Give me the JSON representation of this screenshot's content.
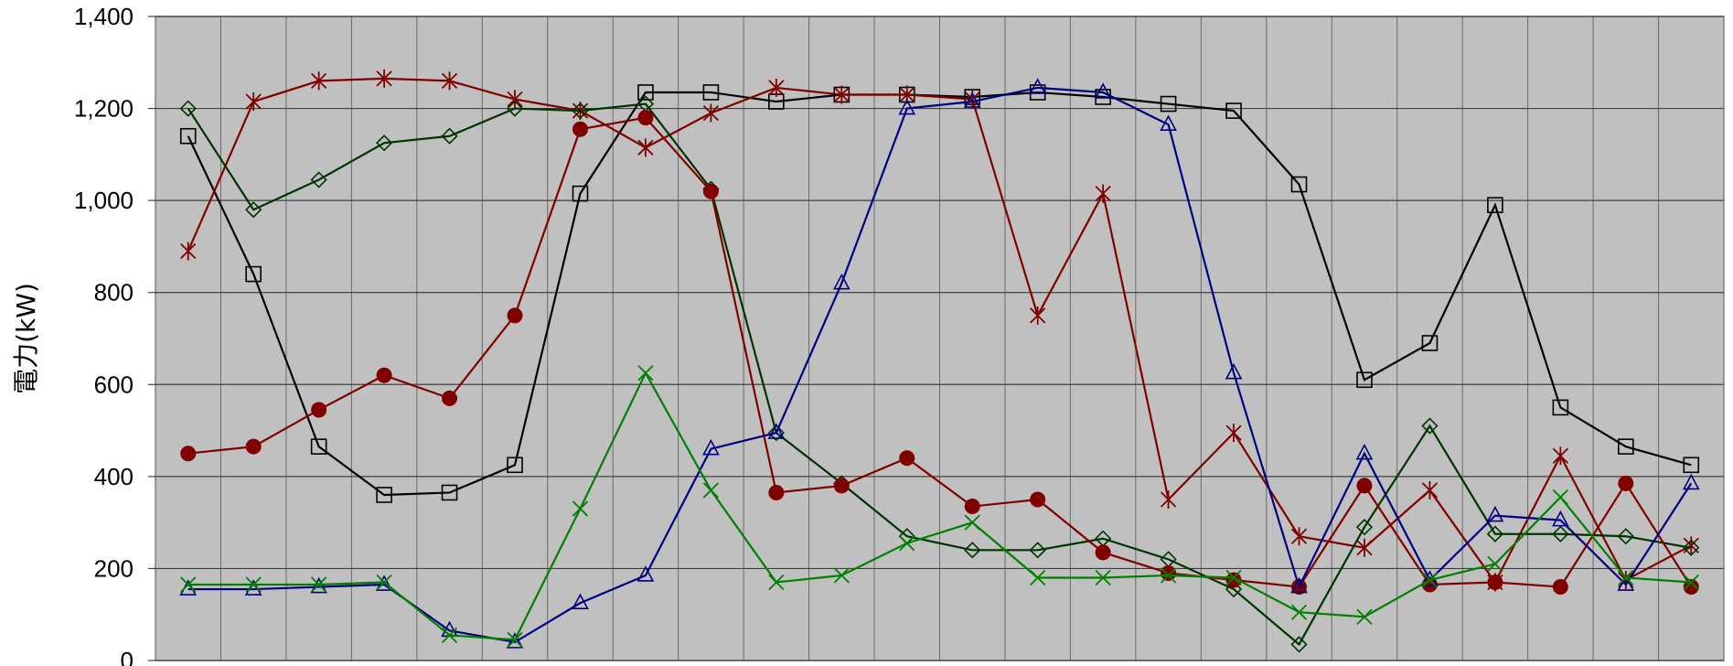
{
  "chart_data": {
    "type": "line",
    "ylabel": "電力(kW)",
    "xlabel": "",
    "ylim": [
      0,
      1400
    ],
    "yticks": [
      0,
      200,
      400,
      600,
      800,
      1000,
      1200,
      1400
    ],
    "ytick_labels": [
      "0",
      "200",
      "400",
      "600",
      "800",
      "1,000",
      "1,200",
      "1,400"
    ],
    "grid": true,
    "plot_bg": "#c0c0c0",
    "points_per_series": 24,
    "series": [
      {
        "color": "#000000",
        "marker": "square",
        "values": [
          1140,
          840,
          465,
          360,
          365,
          425,
          1015,
          1235,
          1235,
          1215,
          1230,
          1230,
          1225,
          1235,
          1225,
          1210,
          1195,
          1035,
          610,
          690,
          990,
          550,
          465,
          425
        ]
      },
      {
        "color": "#800000",
        "marker": "star",
        "values": [
          890,
          1215,
          1260,
          1265,
          1260,
          1220,
          1195,
          1115,
          1190,
          1245,
          1230,
          1230,
          1220,
          750,
          1015,
          350,
          495,
          270,
          245,
          370,
          170,
          445,
          175,
          250
        ]
      },
      {
        "color": "#003300",
        "marker": "diamond",
        "values": [
          1200,
          980,
          1045,
          1125,
          1140,
          1200,
          1195,
          1210,
          1025,
          495,
          385,
          270,
          240,
          240,
          265,
          220,
          155,
          35,
          290,
          510,
          275,
          275,
          270,
          245
        ]
      },
      {
        "color": "#800000",
        "marker": "circle",
        "values": [
          450,
          465,
          545,
          620,
          570,
          750,
          1155,
          1180,
          1020,
          365,
          380,
          440,
          335,
          350,
          235,
          190,
          175,
          160,
          380,
          165,
          170,
          160,
          385,
          160
        ]
      },
      {
        "color": "#000080",
        "marker": "triangle",
        "values": [
          155,
          155,
          160,
          165,
          65,
          40,
          125,
          185,
          460,
          495,
          820,
          1200,
          1215,
          1245,
          1235,
          1165,
          625,
          160,
          450,
          175,
          315,
          305,
          165,
          385
        ]
      },
      {
        "color": "#008000",
        "marker": "x",
        "values": [
          165,
          165,
          165,
          170,
          55,
          45,
          330,
          625,
          370,
          170,
          185,
          255,
          300,
          180,
          180,
          185,
          180,
          105,
          95,
          175,
          210,
          355,
          180,
          170
        ]
      }
    ]
  }
}
